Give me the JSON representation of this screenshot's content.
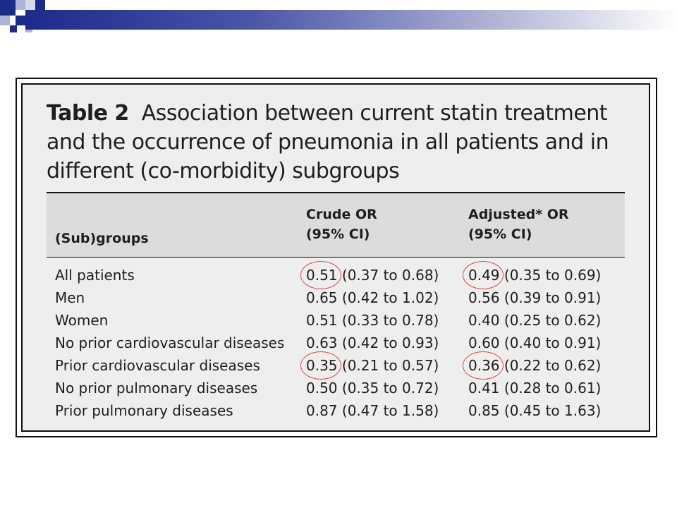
{
  "slide": {
    "table_label": "Table 2",
    "table_title": "Association between current statin treatment and the occurrence of pneumonia in all patients and in different (co-morbidity) subgroups"
  },
  "table": {
    "headers": {
      "col1": "(Sub)groups",
      "col2_line1": "Crude OR",
      "col2_line2": "(95% CI)",
      "col3_line1": "Adjusted* OR",
      "col3_line2": "(95% CI)"
    },
    "rows": [
      {
        "group": "All patients",
        "crude": "0.51 (0.37 to 0.68)",
        "adjusted": "0.49 (0.35 to 0.69)"
      },
      {
        "group": "Men",
        "crude": "0.65 (0.42 to 1.02)",
        "adjusted": "0.56 (0.39 to 0.91)"
      },
      {
        "group": "Women",
        "crude": "0.51 (0.33 to 0.78)",
        "adjusted": "0.40 (0.25 to 0.62)"
      },
      {
        "group": "No prior cardiovascular diseases",
        "crude": "0.63 (0.42 to 0.93)",
        "adjusted": "0.60 (0.40 to 0.91)"
      },
      {
        "group": "Prior cardiovascular diseases",
        "crude": "0.35 (0.21 to 0.57)",
        "adjusted": "0.36 (0.22 to 0.62)"
      },
      {
        "group": "No prior pulmonary diseases",
        "crude": "0.50 (0.35 to 0.72)",
        "adjusted": "0.41 (0.28 to 0.61)"
      },
      {
        "group": "Prior pulmonary diseases",
        "crude": "0.87 (0.47 to 1.58)",
        "adjusted": "0.85 (0.45 to 1.63)"
      }
    ]
  },
  "colors": {
    "annotation_circle": "#e04848",
    "header_band": "#dcdcdc",
    "panel_background": "#eeeeee"
  }
}
